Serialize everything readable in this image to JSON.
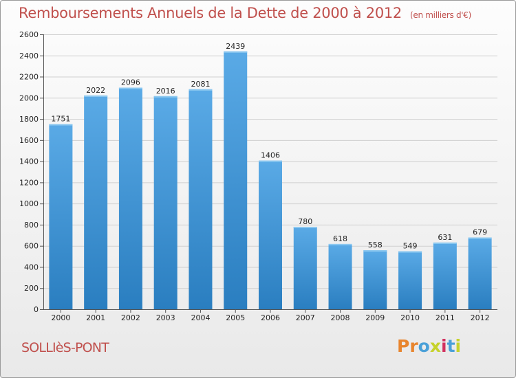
{
  "header": {
    "title": "Remboursements Annuels de la Dette de 2000 à 2012",
    "unit": "(en milliers d'€)"
  },
  "footer": {
    "commune": "SOLLIèS-PONT",
    "logo": "Proxiti",
    "logo_colors": [
      "#e8852e",
      "#e8852e",
      "#4aa0d8",
      "#c6d22b",
      "#d2315f",
      "#4aa0d8",
      "#c6d22b"
    ]
  },
  "chart_data": {
    "type": "bar",
    "categories": [
      "2000",
      "2001",
      "2002",
      "2003",
      "2004",
      "2005",
      "2006",
      "2007",
      "2008",
      "2009",
      "2010",
      "2011",
      "2012"
    ],
    "values": [
      1751,
      2022,
      2096,
      2016,
      2081,
      2439,
      1406,
      780,
      618,
      558,
      549,
      631,
      679
    ],
    "ylim": [
      0,
      2600
    ],
    "yticks": [
      0,
      200,
      400,
      600,
      800,
      1000,
      1200,
      1400,
      1600,
      1800,
      2000,
      2200,
      2400,
      2600
    ],
    "grid": true,
    "bar_color_top": "#5aaae6",
    "bar_color_bottom": "#2a7ec0"
  }
}
